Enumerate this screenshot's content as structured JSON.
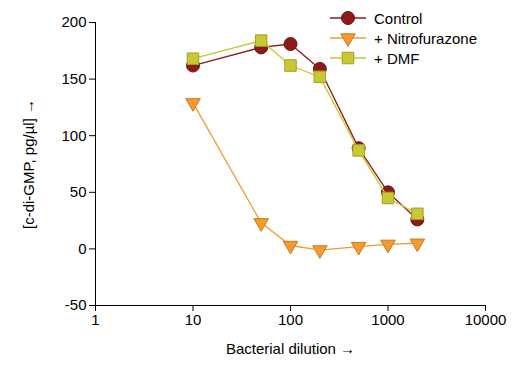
{
  "chart_data": {
    "type": "line",
    "x_label": "Bacterial dilution",
    "y_label": "[c-di-GMP, pg/µl]",
    "x": [
      10,
      50,
      100,
      200,
      500,
      1000,
      2000
    ],
    "series": [
      {
        "name": "Control",
        "color": "#8b1a1a",
        "marker": "circle",
        "values": [
          162,
          178,
          181,
          159,
          89,
          50,
          26
        ]
      },
      {
        "name": "+ Nitrofurazone",
        "color": "#f59a2e",
        "marker": "triangle-down",
        "values": [
          129,
          23,
          3,
          -1,
          2,
          4,
          5
        ]
      },
      {
        "name": "+ DMF",
        "color": "#c8c832",
        "marker": "square",
        "values": [
          168,
          184,
          162,
          152,
          87,
          45,
          31
        ]
      }
    ],
    "log": "x",
    "xlim": [
      1,
      10000
    ],
    "xticks": [
      1,
      10,
      100,
      1000,
      10000
    ],
    "ylim": [
      -50,
      200
    ],
    "yticks": [
      -50,
      0,
      50,
      100,
      150,
      200
    ],
    "grid": false,
    "legend": "upper right"
  }
}
